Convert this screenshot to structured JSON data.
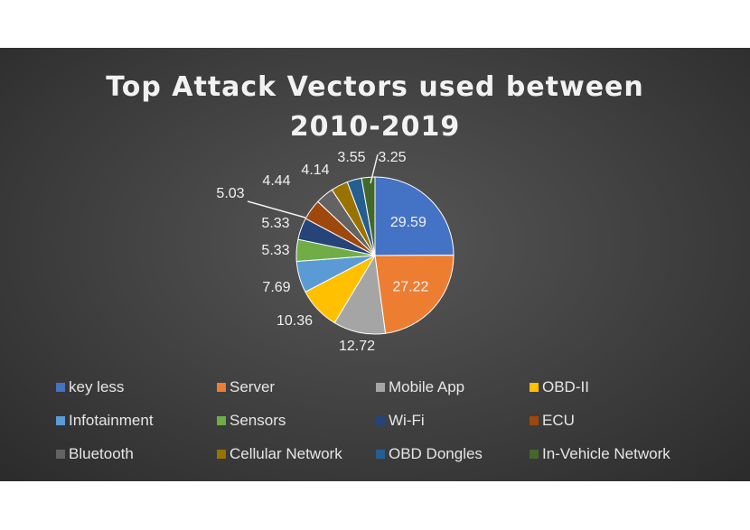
{
  "chart_data": {
    "type": "pie",
    "title": "Top Attack Vectors used between 2010-2019",
    "title_lines": [
      "Top Attack Vectors used between",
      "2010-2019"
    ],
    "categories": [
      "key less",
      "Server",
      "Mobile App",
      "OBD-II",
      "Infotainment",
      "Sensors",
      "Wi-Fi",
      "ECU",
      "Bluetooth",
      "Cellular Network",
      "OBD Dongles",
      "In-Vehicle Network"
    ],
    "values": [
      29.59,
      27.22,
      12.72,
      10.36,
      7.69,
      5.33,
      5.33,
      5.03,
      4.44,
      4.14,
      3.55,
      3.25
    ],
    "labels": [
      "29.59",
      "27.22",
      "12.72",
      "10.36",
      "7.69",
      "5.33",
      "5.33",
      "5.03",
      "4.44",
      "4.14",
      "3.55",
      "3.25"
    ],
    "colors": [
      "#4472c4",
      "#ed7d31",
      "#a5a5a5",
      "#ffc000",
      "#5b9bd5",
      "#70ad47",
      "#264478",
      "#9e480e",
      "#636363",
      "#997300",
      "#255e91",
      "#43682b"
    ],
    "legend_position": "bottom",
    "background": "#404040"
  }
}
